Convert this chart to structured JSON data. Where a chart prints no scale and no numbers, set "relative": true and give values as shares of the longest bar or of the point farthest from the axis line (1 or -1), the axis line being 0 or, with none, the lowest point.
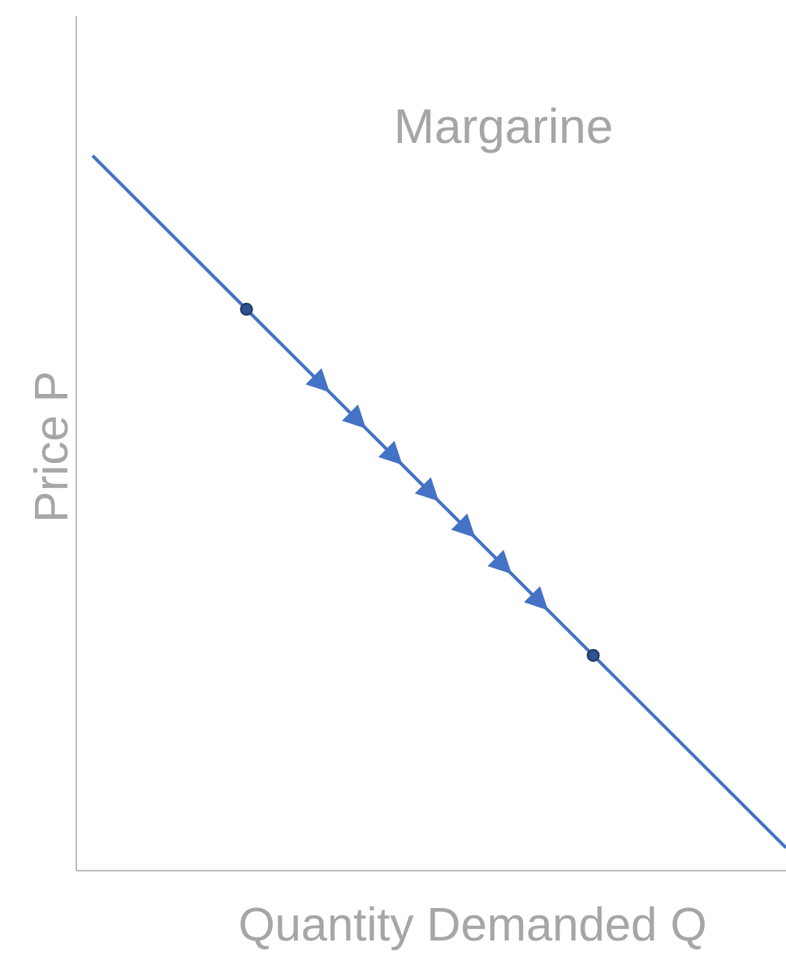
{
  "chart_data": {
    "type": "line",
    "title": "Margarine",
    "xlabel": "Quantity Demanded Q",
    "ylabel": "Price P",
    "relative": true,
    "categories": [
      null,
      null
    ],
    "grid": false,
    "legend": false,
    "series": [
      {
        "color": "#4472c4",
        "marker": "none",
        "values": [
          1,
          0.032
        ]
      }
    ]
  }
}
